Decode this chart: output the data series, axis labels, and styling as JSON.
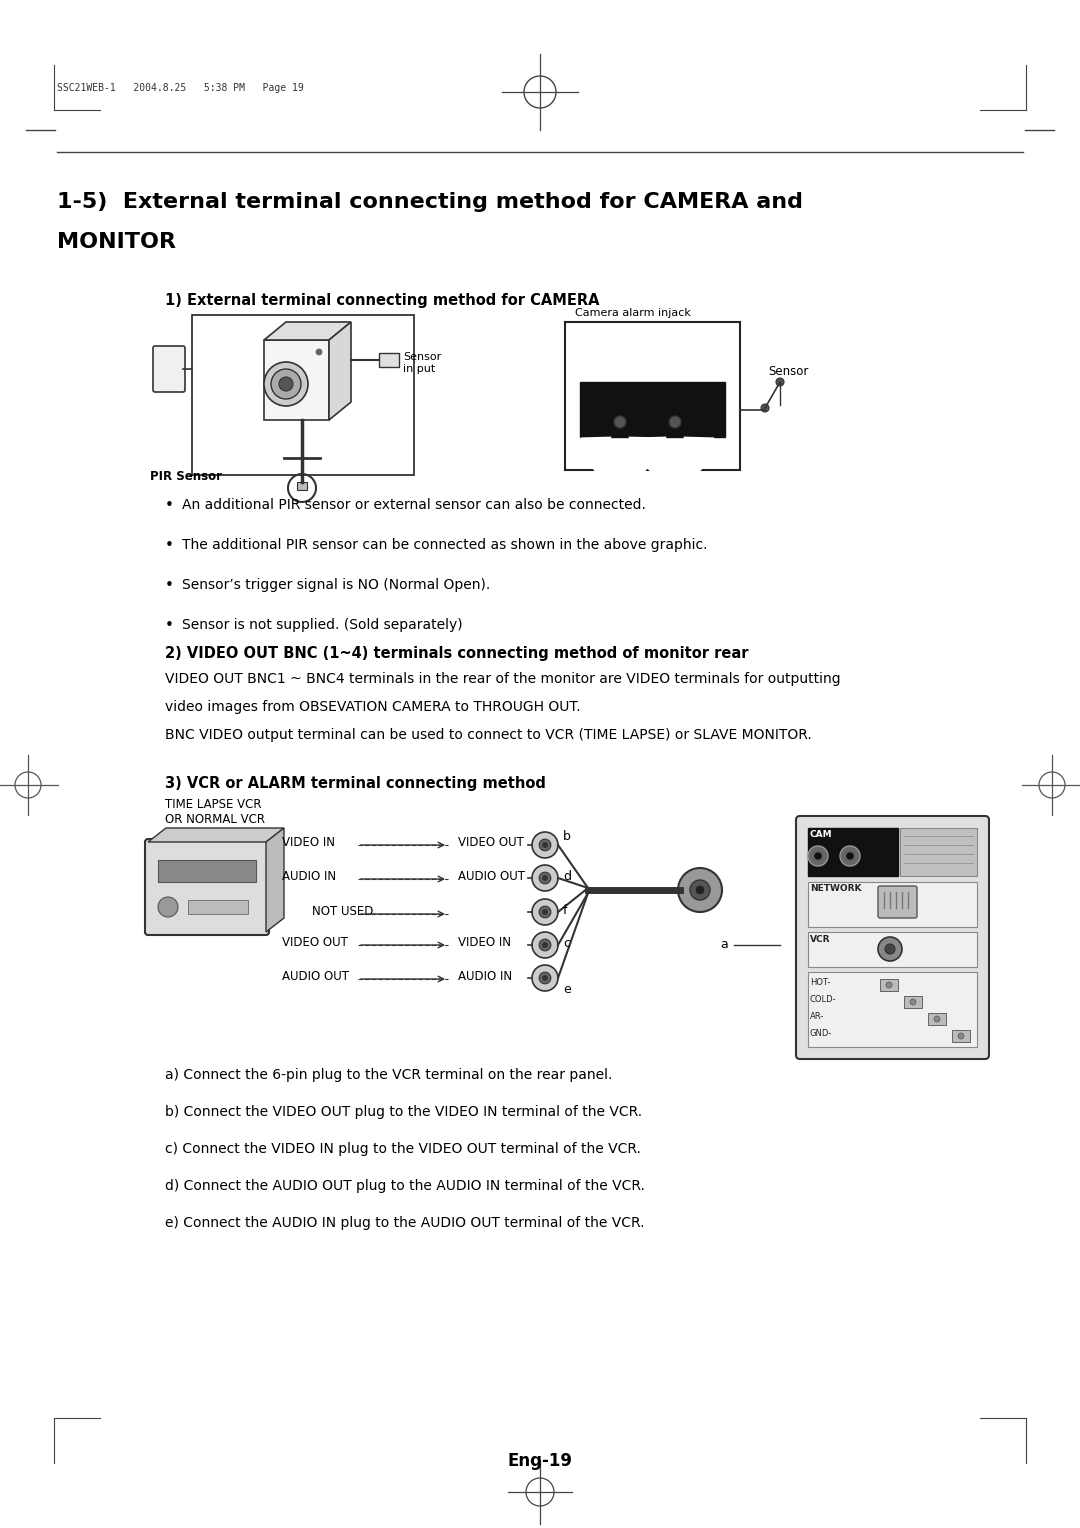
{
  "page_header": "SSC21WEB-1   2004.8.25   5:38 PM   Page 19",
  "section_title_line1": "1-5)  External terminal connecting method for CAMERA and",
  "section_title_line2": "MONITOR",
  "subsection1": "1) External terminal connecting method for CAMERA",
  "camera_alarm_label": "Camera alarm injack",
  "pir_label": "PIR Sensor",
  "sensor_input_label": "Sensor\nin put",
  "sensor_label": "Sensor",
  "bullets": [
    "An additional PIR sensor or external sensor can also be connected.",
    "The additional PIR sensor can be connected as shown in the above graphic.",
    "Sensor’s trigger signal is NO (Normal Open).",
    "Sensor is not supplied. (Sold separately)"
  ],
  "subsection2": "2) VIDEO OUT BNC (1~4) terminals connecting method of monitor rear",
  "body_text2a": "VIDEO OUT BNC1 ~ BNC4 terminals in the rear of the monitor are VIDEO terminals for outputting",
  "body_text2b": "video images from OBSEVATION CAMERA to THROUGH OUT.",
  "body_text2c": "BNC VIDEO output terminal can be used to connect to VCR (TIME LAPSE) or SLAVE MONITOR.",
  "subsection3": "3) VCR or ALARM terminal connecting method",
  "vcr_label": "TIME LAPSE VCR\nOR NORMAL VCR",
  "lbl_video_in": "VIDEO IN",
  "lbl_video_out": "VIDEO OUT",
  "lbl_audio_in": "AUDIO IN",
  "lbl_audio_out": "AUDIO OUT",
  "lbl_not_used": "NOT USED",
  "lbl_video_out2": "VIDEO OUT",
  "lbl_video_in2": "VIDEO IN",
  "lbl_audio_out2": "AUDIO OUT",
  "lbl_audio_in2": "AUDIO IN",
  "lbl_b": "b",
  "lbl_d": "d",
  "lbl_f": "f",
  "lbl_a": "a",
  "lbl_c": "c",
  "lbl_e": "e",
  "lbl_cam": "CAM",
  "lbl_network": "NETWORK",
  "lbl_vcr": "VCR",
  "lbl_hot": "HOT-",
  "lbl_cold": "COLD-",
  "lbl_ar": "AR-",
  "lbl_gnd": "GND-",
  "footnotes": [
    "a) Connect the 6-pin plug to the VCR terminal on the rear panel.",
    "b) Connect the VIDEO OUT plug to the VIDEO IN terminal of the VCR.",
    "c) Connect the VIDEO IN plug to the VIDEO OUT terminal of the VCR.",
    "d) Connect the AUDIO OUT plug to the AUDIO IN terminal of the VCR.",
    "e) Connect the AUDIO IN plug to the AUDIO OUT terminal of the VCR."
  ],
  "page_footer": "Eng-19",
  "bg_color": "#ffffff"
}
